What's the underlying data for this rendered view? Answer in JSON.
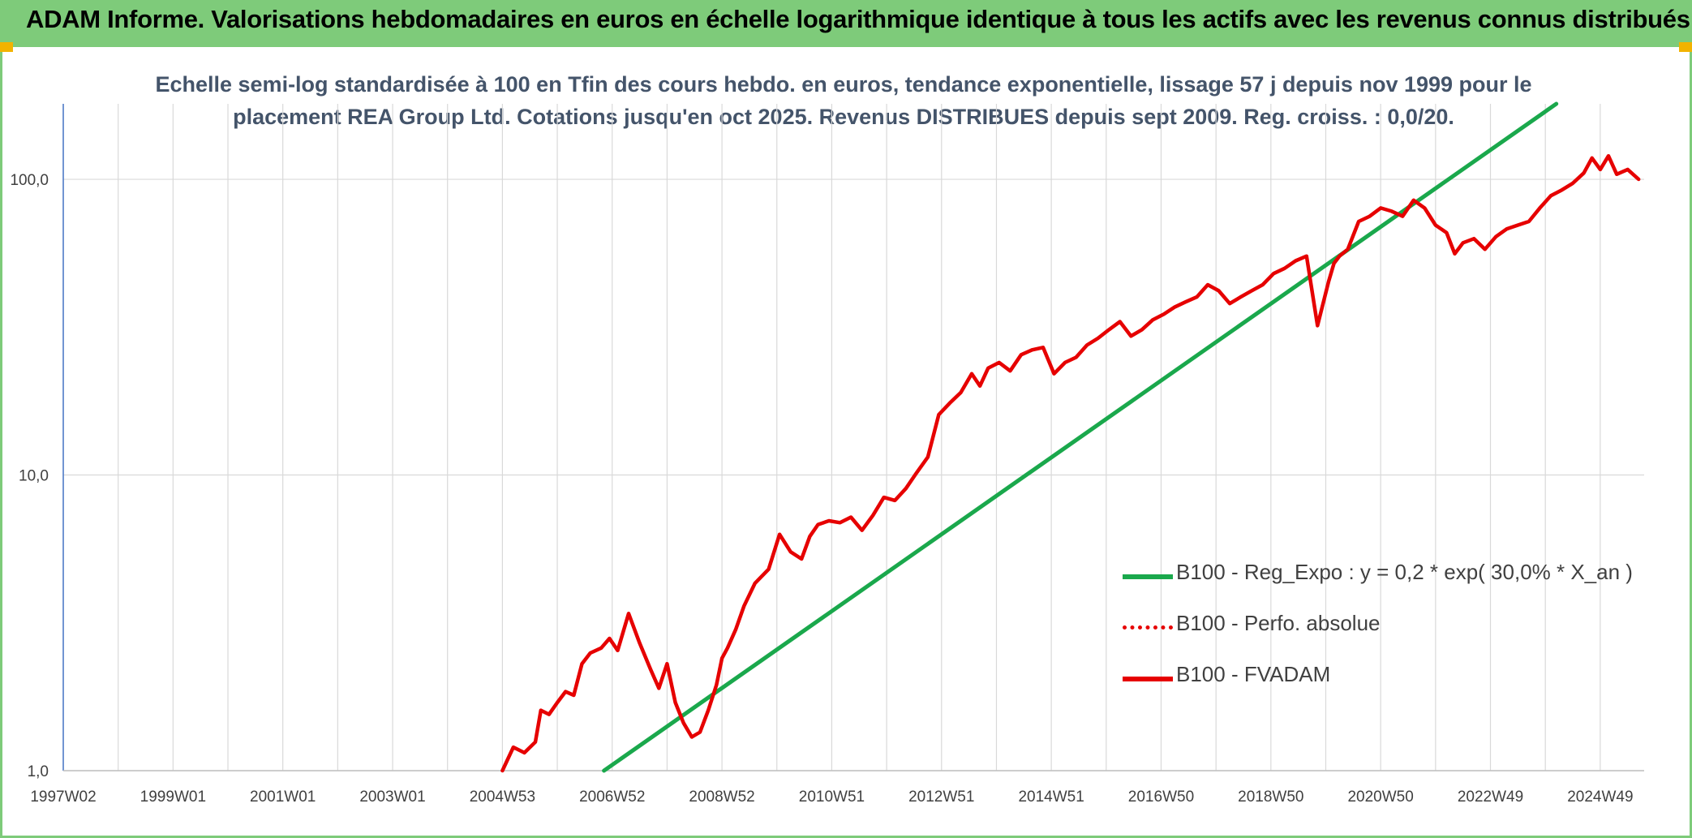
{
  "header": {
    "title": "ADAM Informe. Valorisations hebdomadaires en euros en échelle logarithmique identique à tous les actifs avec les revenus connus distribués"
  },
  "colors": {
    "banner": "#7ecb7a",
    "corner_accent": "#f2b300",
    "title_text": "#44546a",
    "grid": "#d9d9d9",
    "axis": "#4472c4",
    "trend_line": "#1aa84c",
    "fvadam_line": "#e60000"
  },
  "chart_data": {
    "type": "line",
    "title": "Echelle semi-log standardisée à 100 en Tfin des cours hebdo. en euros, tendance exponentielle, lissage 57 j depuis nov 1999 pour le placement REA Group Ltd. Cotations jusqu'en oct 2025. Revenus DISTRIBUES depuis sept 2009. Reg. croiss. : 0,0/20.",
    "title_lines": [
      "Echelle semi-log standardisée à 100 en Tfin des cours hebdo. en euros, tendance exponentielle, lissage 57 j depuis nov 1999 pour le",
      "placement REA Group Ltd. Cotations jusqu'en oct 2025. Revenus DISTRIBUES depuis sept 2009. Reg. croiss. : 0,0/20."
    ],
    "xlabel": "",
    "ylabel": "",
    "y_scale": "log",
    "ylim": [
      1,
      180
    ],
    "xlim": [
      1997.0,
      2025.8
    ],
    "grid": true,
    "legend_position": "bottom-right",
    "x_ticks": [
      {
        "label": "1997W02",
        "x": 1997.0
      },
      {
        "label": "1999W01",
        "x": 1999.0
      },
      {
        "label": "2001W01",
        "x": 2001.0
      },
      {
        "label": "2003W01",
        "x": 2003.0
      },
      {
        "label": "2004W53",
        "x": 2005.0
      },
      {
        "label": "2006W52",
        "x": 2007.0
      },
      {
        "label": "2008W52",
        "x": 2009.0
      },
      {
        "label": "2010W51",
        "x": 2011.0
      },
      {
        "label": "2012W51",
        "x": 2013.0
      },
      {
        "label": "2014W51",
        "x": 2015.0
      },
      {
        "label": "2016W50",
        "x": 2017.0
      },
      {
        "label": "2018W50",
        "x": 2019.0
      },
      {
        "label": "2020W50",
        "x": 2021.0
      },
      {
        "label": "2022W49",
        "x": 2023.0
      },
      {
        "label": "2024W49",
        "x": 2025.0
      }
    ],
    "y_ticks": [
      {
        "label": "1,0",
        "value": 1
      },
      {
        "label": "10,0",
        "value": 10
      },
      {
        "label": "100,0",
        "value": 100
      }
    ],
    "series": [
      {
        "name": "B100 - Reg_Expo : y = 0,2 * exp( 30,0% *  X_an )",
        "style": "solid",
        "color": "#1aa84c",
        "x": [
          2006.85,
          2024.2
        ],
        "y": [
          1.0,
          180.0
        ]
      },
      {
        "name": "B100 - Perfo. absolue",
        "style": "dotted",
        "color": "#e60000",
        "x": [],
        "y": []
      },
      {
        "name": "B100 - FVADAM",
        "style": "solid",
        "color": "#e60000",
        "x": [
          2005.0,
          2005.2,
          2005.4,
          2005.6,
          2005.7,
          2005.85,
          2006.0,
          2006.15,
          2006.3,
          2006.45,
          2006.6,
          2006.8,
          2006.95,
          2007.1,
          2007.3,
          2007.5,
          2007.7,
          2007.85,
          2008.0,
          2008.15,
          2008.3,
          2008.45,
          2008.6,
          2008.75,
          2008.9,
          2009.0,
          2009.1,
          2009.25,
          2009.4,
          2009.6,
          2009.85,
          2010.05,
          2010.25,
          2010.45,
          2010.6,
          2010.75,
          2010.95,
          2011.15,
          2011.35,
          2011.55,
          2011.75,
          2011.95,
          2012.15,
          2012.35,
          2012.55,
          2012.75,
          2012.95,
          2013.15,
          2013.35,
          2013.55,
          2013.7,
          2013.85,
          2014.05,
          2014.25,
          2014.45,
          2014.65,
          2014.85,
          2015.05,
          2015.25,
          2015.45,
          2015.65,
          2015.85,
          2016.05,
          2016.25,
          2016.45,
          2016.65,
          2016.85,
          2017.05,
          2017.25,
          2017.45,
          2017.65,
          2017.85,
          2018.05,
          2018.25,
          2018.45,
          2018.65,
          2018.85,
          2019.05,
          2019.25,
          2019.45,
          2019.65,
          2019.85,
          2020.05,
          2020.15,
          2020.25,
          2020.4,
          2020.6,
          2020.8,
          2021.0,
          2021.2,
          2021.4,
          2021.6,
          2021.8,
          2022.0,
          2022.2,
          2022.35,
          2022.5,
          2022.7,
          2022.9,
          2023.1,
          2023.3,
          2023.5,
          2023.7,
          2023.9,
          2024.1,
          2024.3,
          2024.5,
          2024.7,
          2024.85,
          2025.0,
          2025.15,
          2025.3,
          2025.5,
          2025.7
        ],
        "y": [
          1.0,
          1.2,
          1.15,
          1.25,
          1.6,
          1.55,
          1.7,
          1.85,
          1.8,
          2.3,
          2.5,
          2.6,
          2.8,
          2.55,
          3.4,
          2.7,
          2.2,
          1.9,
          2.3,
          1.7,
          1.45,
          1.3,
          1.35,
          1.6,
          1.95,
          2.4,
          2.6,
          3.0,
          3.6,
          4.3,
          4.8,
          6.3,
          5.5,
          5.2,
          6.2,
          6.8,
          7.0,
          6.9,
          7.2,
          6.5,
          7.3,
          8.4,
          8.2,
          9.0,
          10.2,
          11.5,
          16.0,
          17.5,
          19.0,
          22.0,
          20.0,
          23.0,
          24.0,
          22.5,
          25.5,
          26.5,
          27.0,
          22.0,
          24.0,
          25.0,
          27.5,
          29.0,
          31.0,
          33.0,
          29.5,
          31.0,
          33.5,
          35.0,
          37.0,
          38.5,
          40.0,
          44.0,
          42.0,
          38.0,
          40.0,
          42.0,
          44.0,
          48.0,
          50.0,
          53.0,
          55.0,
          32.0,
          45.0,
          52.0,
          55.0,
          58.0,
          72.0,
          75.0,
          80.0,
          78.0,
          75.0,
          85.0,
          80.0,
          70.0,
          66.0,
          56.0,
          61.0,
          63.0,
          58.0,
          64.0,
          68.0,
          70.0,
          72.0,
          80.0,
          88.0,
          92.0,
          97.0,
          105.0,
          118.0,
          108.0,
          120.0,
          104.0,
          108.0,
          100.0
        ]
      }
    ]
  }
}
